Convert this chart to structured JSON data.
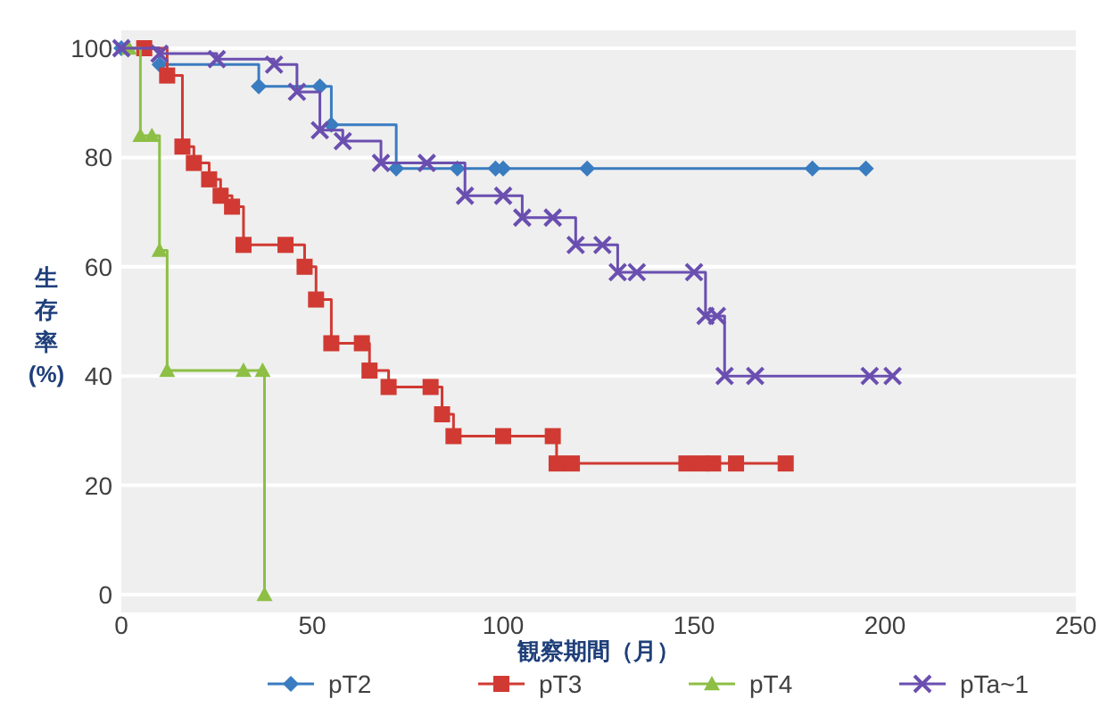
{
  "chart_data": {
    "type": "step",
    "xlabel": "観察期間（月）",
    "ylabel": "生存率(%)",
    "xlim": [
      0,
      250
    ],
    "xticks": [
      0,
      50,
      100,
      150,
      200,
      250
    ],
    "ylim": [
      0,
      100
    ],
    "yticks": [
      0,
      20,
      40,
      60,
      80,
      100
    ],
    "grid": "y",
    "legend": "bottom",
    "line_style": "solid",
    "series": [
      {
        "name": "pT2",
        "color": "#3a7cc0",
        "marker": "diamond",
        "x": [
          0,
          10,
          36,
          52,
          55,
          72,
          88,
          98,
          100,
          122,
          181,
          195
        ],
        "values": [
          100,
          97,
          93,
          93,
          86,
          78,
          78,
          78,
          78,
          78,
          78,
          78
        ]
      },
      {
        "name": "pT3",
        "color": "#d03a33",
        "marker": "square",
        "x": [
          6,
          12,
          16,
          19,
          23,
          26,
          29,
          32,
          43,
          48,
          51,
          55,
          63,
          65,
          70,
          81,
          84,
          87,
          100,
          113,
          114,
          118,
          148,
          152,
          155,
          161,
          174
        ],
        "values": [
          100,
          95,
          82,
          79,
          76,
          73,
          71,
          64,
          64,
          60,
          54,
          46,
          46,
          41,
          38,
          38,
          33,
          29,
          29,
          29,
          24,
          24,
          24,
          24,
          24,
          24,
          24
        ]
      },
      {
        "name": "pT4",
        "color": "#8dbf45",
        "marker": "triangle",
        "x": [
          2,
          5,
          8,
          10,
          12,
          32,
          37,
          37.5
        ],
        "values": [
          100,
          84,
          84,
          63,
          41,
          41,
          41,
          0
        ]
      },
      {
        "name": "pTa~1",
        "color": "#6a4fb0",
        "marker": "cross",
        "x": [
          0,
          10,
          25,
          40,
          46,
          52,
          58,
          68,
          80,
          90,
          100,
          105,
          113,
          119,
          126,
          130,
          135,
          150,
          153,
          156,
          158,
          166,
          196,
          202
        ],
        "values": [
          100,
          99,
          98,
          97,
          92,
          85,
          83,
          79,
          79,
          73,
          73,
          69,
          69,
          64,
          64,
          59,
          59,
          59,
          51,
          51,
          40,
          40,
          40,
          40
        ]
      }
    ]
  }
}
